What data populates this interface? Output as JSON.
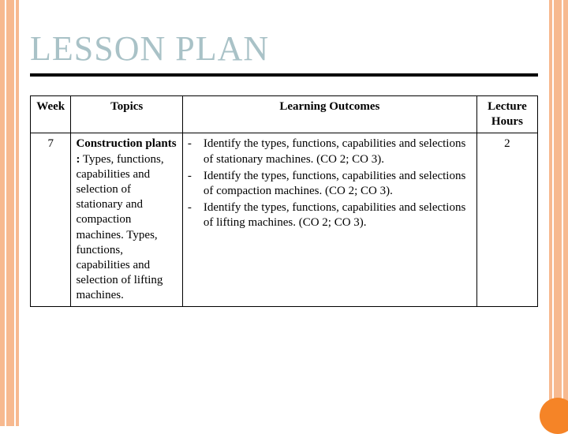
{
  "palette": {
    "stripe_color": "#f7b98f",
    "title_color": "#a9c2c7",
    "rule_color": "#000000",
    "border_color": "#000000",
    "text_color": "#000000",
    "circle_color": "#f58427",
    "background": "#ffffff"
  },
  "title": "LESSON PLAN",
  "table": {
    "columns": [
      "Week",
      "Topics",
      "Learning Outcomes",
      "Lecture Hours"
    ],
    "col_widths_pct": [
      8,
      22,
      58,
      12
    ],
    "rows": [
      {
        "week": "7",
        "topic_title": "Construction plants :",
        "topic_body": "Types, functions, capabilities and selection of stationary and compaction machines. Types, functions, capabilities and selection of lifting machines.",
        "outcomes_bullet": "-",
        "outcomes": [
          "Identify the types, functions, capabilities and selections of stationary machines. (CO 2; CO 3).",
          "Identify the types, functions, capabilities and selections of compaction machines. (CO 2; CO 3).",
          "Identify the types, functions, capabilities and selections of lifting machines. (CO 2; CO 3)."
        ],
        "hours": "2"
      }
    ]
  }
}
